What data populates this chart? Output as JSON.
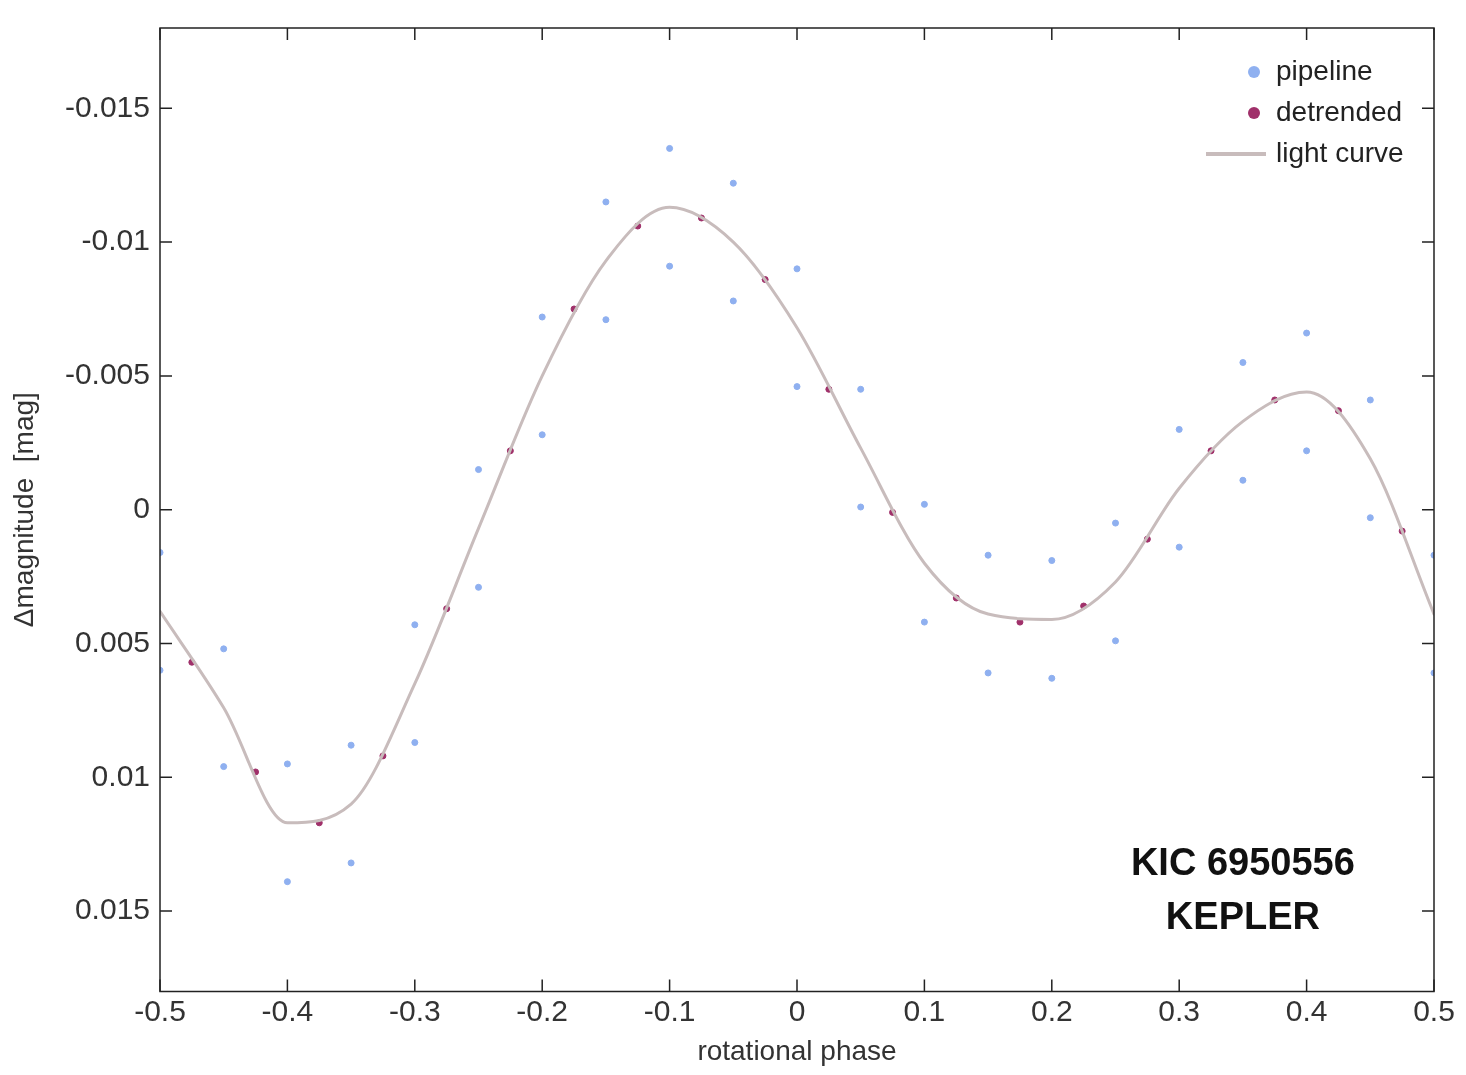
{
  "chart_data": {
    "type": "scatter",
    "xlabel": "rotational phase",
    "ylabel": "Δmagnitude  [mag]",
    "xlim": [
      -0.5,
      0.5
    ],
    "xticks": [
      -0.5,
      -0.4,
      -0.3,
      -0.2,
      -0.1,
      0,
      0.1,
      0.2,
      0.3,
      0.4,
      0.5
    ],
    "ylim": [
      0.018,
      -0.018
    ],
    "yticks": [
      -0.015,
      -0.01,
      -0.005,
      0,
      0.005,
      0.01,
      0.015
    ],
    "grid": false,
    "legend": "top right",
    "annotations": [
      "KIC 6950556",
      "KEPLER"
    ],
    "series": [
      {
        "name": "pipeline",
        "color": "#8fb0f0",
        "x": [
          -0.5,
          -0.45,
          -0.4,
          -0.35,
          -0.3,
          -0.25,
          -0.2,
          -0.15,
          -0.1,
          -0.05,
          0,
          0.05,
          0.1,
          0.15,
          0.2,
          0.25,
          0.3,
          0.35,
          0.4,
          0.45,
          0.5,
          -0.5,
          -0.45,
          -0.4,
          -0.35,
          -0.3,
          -0.25,
          -0.2,
          -0.15,
          -0.1,
          -0.05,
          0,
          0.05,
          0.1,
          0.15,
          0.2,
          0.25,
          0.3,
          0.35,
          0.4,
          0.45,
          0.5
        ],
        "values": [
          0.006,
          0.0096,
          0.0139,
          0.0132,
          0.0087,
          0.0029,
          -0.0028,
          -0.0071,
          -0.0091,
          -0.0078,
          -0.0046,
          -0.0001,
          0.0042,
          0.0061,
          0.0063,
          0.0049,
          0.0014,
          -0.0011,
          -0.0022,
          0.0003,
          0.0061,
          0.0016,
          0.0052,
          0.0095,
          0.0088,
          0.0043,
          -0.0015,
          -0.0072,
          -0.0115,
          -0.0135,
          -0.0122,
          -0.009,
          -0.0045,
          -0.0002,
          0.0017,
          0.0019,
          0.0005,
          -0.003,
          -0.0055,
          -0.0066,
          -0.0041,
          0.0017
        ]
      },
      {
        "name": "detrended",
        "color": "#a0306a",
        "x": [
          -0.475,
          -0.425,
          -0.375,
          -0.325,
          -0.275,
          -0.225,
          -0.175,
          -0.125,
          -0.075,
          -0.025,
          0.025,
          0.075,
          0.125,
          0.175,
          0.225,
          0.275,
          0.325,
          0.375,
          0.425,
          0.475
        ],
        "values": [
          0.0057,
          0.0098,
          0.0117,
          0.0092,
          0.0037,
          -0.0022,
          -0.0075,
          -0.0106,
          -0.0109,
          -0.0086,
          -0.0045,
          0.0001,
          0.0033,
          0.0042,
          0.0036,
          0.0011,
          -0.0022,
          -0.0041,
          -0.0037,
          0.0008
        ]
      },
      {
        "name": "light curve",
        "type": "line",
        "color": "#c8bcbc",
        "x": [
          -0.5,
          -0.45,
          -0.4,
          -0.35,
          -0.3,
          -0.25,
          -0.2,
          -0.15,
          -0.1,
          -0.05,
          0,
          0.05,
          0.1,
          0.15,
          0.2,
          0.25,
          0.3,
          0.35,
          0.4,
          0.45,
          0.5
        ],
        "values": [
          0.0038,
          0.0074,
          0.0117,
          0.011,
          0.0065,
          0.0007,
          -0.005,
          -0.0093,
          -0.0113,
          -0.01,
          -0.0068,
          -0.0023,
          0.002,
          0.0039,
          0.0041,
          0.0027,
          -0.0008,
          -0.0033,
          -0.0044,
          -0.0019,
          0.0039
        ]
      }
    ]
  }
}
